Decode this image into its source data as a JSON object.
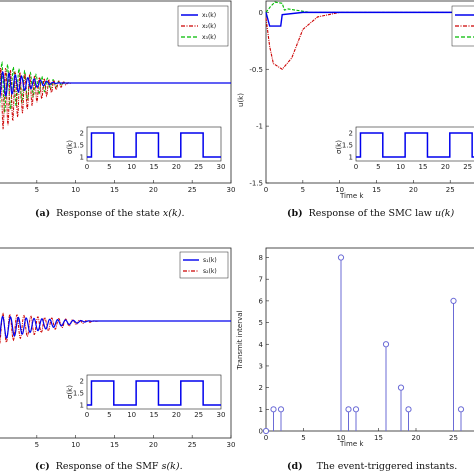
{
  "colors": {
    "blue": "#0000ee",
    "red": "#cc0000",
    "green": "#00bb00",
    "stem": "#6b6bd6",
    "axis": "#222222"
  },
  "panels": [
    {
      "letter": "(a)",
      "caption_text": "Response of the state ",
      "caption_math": "x(k)",
      "caption_end": "."
    },
    {
      "letter": "(b)",
      "caption_text": "Response of the SMC law ",
      "caption_math": "u(k)",
      "caption_end": ""
    },
    {
      "letter": "(c)",
      "caption_text": "Response of the SMF ",
      "caption_math": "s(k)",
      "caption_end": "."
    },
    {
      "letter": "(d)",
      "caption_text": "The event-triggered instants.",
      "caption_math": "",
      "caption_end": ""
    }
  ],
  "chart_data": [
    {
      "id": "a",
      "type": "line",
      "title": "",
      "xlabel": "",
      "ylabel": "",
      "x_ticks": [
        "5",
        "10",
        "15",
        "20",
        "25",
        "30"
      ],
      "xlim": [
        0,
        30
      ],
      "legend": {
        "placement": "top-right",
        "entries": [
          "x₁(k)",
          "x₂(k)",
          "x₃(k)"
        ]
      },
      "series": [
        {
          "name": "x₁(k)",
          "style": "solid",
          "color": "blue"
        },
        {
          "name": "x₂(k)",
          "style": "dashdot",
          "color": "red"
        },
        {
          "name": "x₃(k)",
          "style": "dashed",
          "color": "green"
        }
      ],
      "inset": {
        "ylabel": "σ(k)",
        "x_ticks": [
          "0",
          "5",
          "10",
          "15",
          "20",
          "25",
          "30"
        ],
        "y_ticks": [
          "1",
          "1.5",
          "2"
        ],
        "ylim": [
          1,
          2
        ],
        "xlim": [
          0,
          30
        ],
        "signal": [
          [
            0,
            2
          ],
          [
            2,
            2
          ],
          [
            2,
            1
          ],
          [
            4,
            1
          ],
          [
            4,
            2
          ],
          [
            6,
            2
          ],
          [
            6,
            1
          ],
          [
            8,
            1
          ],
          [
            8,
            2
          ],
          [
            10,
            2
          ],
          [
            10,
            1
          ],
          [
            12,
            1
          ]
        ]
      }
    },
    {
      "id": "b",
      "type": "line",
      "title": "",
      "xlabel": "Time k",
      "ylabel": "u(k)",
      "x_ticks": [
        "0",
        "5",
        "10",
        "15",
        "20",
        "25"
      ],
      "y_ticks": [
        "0",
        "-0.5",
        "-1",
        "-1.5"
      ],
      "xlim": [
        0,
        30
      ],
      "ylim": [
        -1.5,
        0.1
      ],
      "legend": {
        "placement": "top-right",
        "entries": [
          "",
          "",
          ""
        ]
      },
      "inset": {
        "ylabel": "σ(k)",
        "x_ticks": [
          "0",
          "5",
          "10",
          "15",
          "20",
          "25"
        ],
        "y_ticks": [
          "1",
          "1.5",
          "2"
        ],
        "ylim": [
          1,
          2
        ],
        "xlim": [
          0,
          30
        ],
        "signal": []
      }
    },
    {
      "id": "c",
      "type": "line",
      "title": "",
      "xlabel": "",
      "ylabel": "",
      "x_ticks": [
        "5",
        "10",
        "15",
        "20",
        "25",
        "30"
      ],
      "xlim": [
        0,
        30
      ],
      "legend": {
        "placement": "top-right",
        "entries": [
          "s₁(k)",
          "s₂(k)"
        ]
      },
      "series": [
        {
          "name": "s₁(k)",
          "style": "solid",
          "color": "blue"
        },
        {
          "name": "s₂(k)",
          "style": "dashdot",
          "color": "red"
        }
      ],
      "inset": {
        "ylabel": "σ(k)",
        "x_ticks": [
          "0",
          "5",
          "10",
          "15",
          "20",
          "25",
          "30"
        ],
        "y_ticks": [
          "1",
          "1.5",
          "2"
        ],
        "ylim": [
          1,
          2
        ],
        "xlim": [
          0,
          30
        ],
        "signal": []
      }
    },
    {
      "id": "d",
      "type": "scatter",
      "title": "",
      "xlabel": "Time k",
      "ylabel": "Transmit interval",
      "x_ticks": [
        "0",
        "5",
        "10",
        "15",
        "20",
        "25"
      ],
      "y_ticks": [
        "0",
        "1",
        "2",
        "3",
        "4",
        "5",
        "6",
        "7",
        "8"
      ],
      "xlim": [
        0,
        28
      ],
      "ylim": [
        0,
        8.3
      ],
      "stems": [
        {
          "x": 0,
          "y": 0
        },
        {
          "x": 1,
          "y": 1
        },
        {
          "x": 2,
          "y": 1
        },
        {
          "x": 10,
          "y": 8
        },
        {
          "x": 11,
          "y": 1
        },
        {
          "x": 12,
          "y": 1
        },
        {
          "x": 16,
          "y": 4
        },
        {
          "x": 18,
          "y": 2
        },
        {
          "x": 19,
          "y": 1
        },
        {
          "x": 25,
          "y": 6
        },
        {
          "x": 26,
          "y": 1
        }
      ]
    }
  ]
}
